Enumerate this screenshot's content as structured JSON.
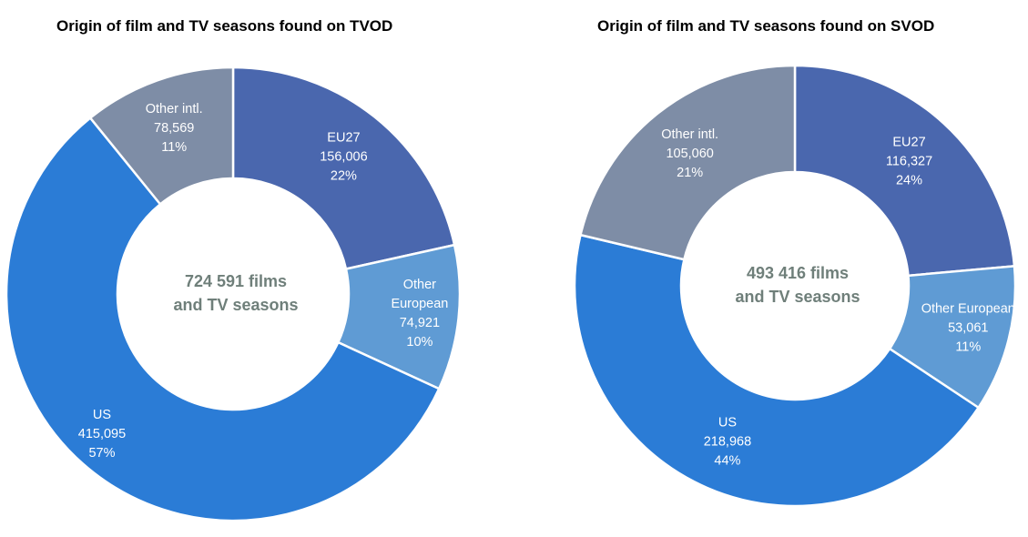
{
  "chart_data": [
    {
      "type": "pie",
      "title": "Origin of film and TV seasons found on TVOD",
      "center_label": [
        "724 591 films",
        "and TV seasons"
      ],
      "slices": [
        {
          "name": "EU27",
          "label": [
            "EU27"
          ],
          "value": 156006,
          "value_text": "156,006",
          "percent_text": "22%",
          "color": "#4a67ae"
        },
        {
          "name": "Other European",
          "label": [
            "Other",
            "European"
          ],
          "value": 74921,
          "value_text": "74,921",
          "percent_text": "10%",
          "color": "#5f9bd4"
        },
        {
          "name": "US",
          "label": [
            "US"
          ],
          "value": 415095,
          "value_text": "415,095",
          "percent_text": "57%",
          "color": "#2b7cd6"
        },
        {
          "name": "Other intl.",
          "label": [
            "Other intl."
          ],
          "value": 78569,
          "value_text": "78,569",
          "percent_text": "11%",
          "color": "#7e8da6"
        }
      ]
    },
    {
      "type": "pie",
      "title": "Origin of film and TV seasons found on SVOD",
      "center_label": [
        "493 416 films",
        "and TV seasons"
      ],
      "slices": [
        {
          "name": "EU27",
          "label": [
            "EU27"
          ],
          "value": 116327,
          "value_text": "116,327",
          "percent_text": "24%",
          "color": "#4a67ae"
        },
        {
          "name": "Other European",
          "label": [
            "Other European"
          ],
          "value": 53061,
          "value_text": "53,061",
          "percent_text": "11%",
          "color": "#5f9bd4"
        },
        {
          "name": "US",
          "label": [
            "US"
          ],
          "value": 218968,
          "value_text": "218,968",
          "percent_text": "44%",
          "color": "#2b7cd6"
        },
        {
          "name": "Other intl.",
          "label": [
            "Other intl."
          ],
          "value": 105060,
          "value_text": "105,060",
          "percent_text": "21%",
          "color": "#7e8da6"
        }
      ]
    }
  ]
}
